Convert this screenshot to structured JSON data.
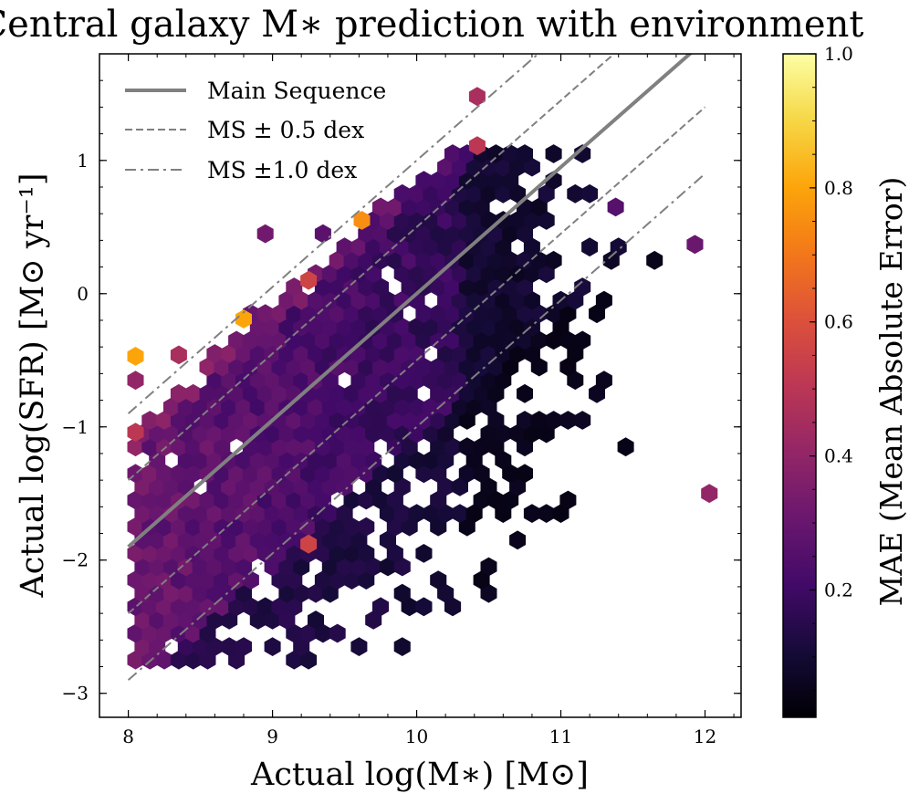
{
  "chart_data": {
    "type": "heatmap",
    "title": "Central galaxy M∗ prediction with environment",
    "xlabel": "Actual log(M∗) [M⊙]",
    "ylabel": "Actual log(SFR) [M⊙ yr⁻¹]",
    "xlim": [
      7.8,
      12.25
    ],
    "ylim": [
      -3.18,
      1.8
    ],
    "x_ticks": [
      8,
      9,
      10,
      11,
      12
    ],
    "x_tick_labels": [
      "8",
      "9",
      "10",
      "11",
      "12"
    ],
    "y_ticks": [
      -3,
      -2,
      -1,
      0,
      1
    ],
    "y_tick_labels": [
      "−3",
      "−2",
      "−1",
      "0",
      "1"
    ],
    "colorbar": {
      "label": "MAE (Mean Absolute Error)",
      "range": [
        0.01,
        1.0
      ],
      "ticks": [
        0.2,
        0.4,
        0.6,
        0.8,
        1.0
      ],
      "tick_labels": [
        "0.2",
        "0.4",
        "0.6",
        "0.8",
        "1.0"
      ],
      "colormap": "inferno"
    },
    "main_sequence": {
      "slope": 0.95,
      "intercept_at_8": -1.9
    },
    "lines": [
      {
        "name": "Main Sequence",
        "offset": 0.0,
        "style": "solid"
      },
      {
        "name": "MS + 0.5 dex",
        "offset": 0.5,
        "style": "dashed"
      },
      {
        "name": "MS − 0.5 dex",
        "offset": -0.5,
        "style": "dashed"
      },
      {
        "name": "MS + 1.0 dex",
        "offset": 1.0,
        "style": "dashdot"
      },
      {
        "name": "MS − 1.0 dex",
        "offset": -1.0,
        "style": "dashdot"
      }
    ],
    "legend": {
      "position": "upper-left",
      "entries": [
        {
          "label": "Main Sequence",
          "style": "solid"
        },
        {
          "label": "MS ± 0.5 dex",
          "style": "dashed"
        },
        {
          "label": "MS ±1.0 dex",
          "style": "dashdot"
        }
      ]
    },
    "highlight_hexbins": [
      {
        "x": 10.42,
        "y": 1.48,
        "mae": 0.45
      },
      {
        "x": 10.42,
        "y": 1.11,
        "mae": 0.5
      },
      {
        "x": 9.62,
        "y": 0.55,
        "mae": 0.75
      },
      {
        "x": 9.25,
        "y": 0.1,
        "mae": 0.55
      },
      {
        "x": 8.8,
        "y": -0.19,
        "mae": 0.8
      },
      {
        "x": 8.05,
        "y": -0.47,
        "mae": 0.8
      },
      {
        "x": 8.05,
        "y": -0.65,
        "mae": 0.4
      },
      {
        "x": 8.35,
        "y": -0.46,
        "mae": 0.45
      },
      {
        "x": 8.05,
        "y": -1.04,
        "mae": 0.5
      },
      {
        "x": 9.25,
        "y": -1.88,
        "mae": 0.55
      },
      {
        "x": 12.03,
        "y": -1.5,
        "mae": 0.4
      },
      {
        "x": 11.93,
        "y": 0.37,
        "mae": 0.3
      },
      {
        "x": 11.38,
        "y": 0.65,
        "mae": 0.25
      }
    ]
  }
}
